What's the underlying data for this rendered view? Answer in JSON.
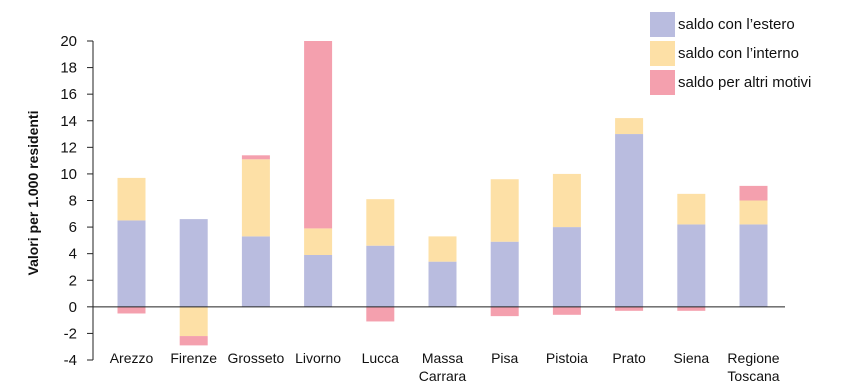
{
  "chart_data": {
    "type": "bar",
    "stacked": true,
    "title": "",
    "xlabel": "",
    "ylabel": "Valori per 1.000 residenti",
    "ylim": [
      -4,
      20
    ],
    "yticks": [
      -4,
      -2,
      0,
      2,
      4,
      6,
      8,
      10,
      12,
      14,
      16,
      18,
      20
    ],
    "grid": false,
    "legend_position": "top-right",
    "categories": [
      [
        "Arezzo"
      ],
      [
        "Firenze"
      ],
      [
        "Grosseto"
      ],
      [
        "Livorno"
      ],
      [
        "Lucca"
      ],
      [
        "Massa",
        "Carrara"
      ],
      [
        "Pisa"
      ],
      [
        "Pistoia"
      ],
      [
        "Prato"
      ],
      [
        "Siena"
      ],
      [
        "Regione",
        "Toscana"
      ]
    ],
    "series": [
      {
        "name": "saldo con l’estero",
        "color": "#b9bcdf",
        "values": [
          6.5,
          6.6,
          5.3,
          3.9,
          4.6,
          3.4,
          4.9,
          6.0,
          13.0,
          6.2,
          6.2
        ]
      },
      {
        "name": "saldo con l’interno",
        "color": "#fde0a6",
        "values": [
          3.2,
          -2.2,
          5.8,
          2.0,
          3.5,
          1.9,
          4.7,
          4.0,
          1.2,
          2.3,
          1.8
        ]
      },
      {
        "name": "saldo per altri motivi",
        "color": "#f4a0ae",
        "values": [
          -0.5,
          -0.7,
          0.3,
          14.1,
          -1.1,
          0.0,
          -0.7,
          -0.6,
          -0.3,
          -0.3,
          1.1
        ]
      }
    ]
  }
}
